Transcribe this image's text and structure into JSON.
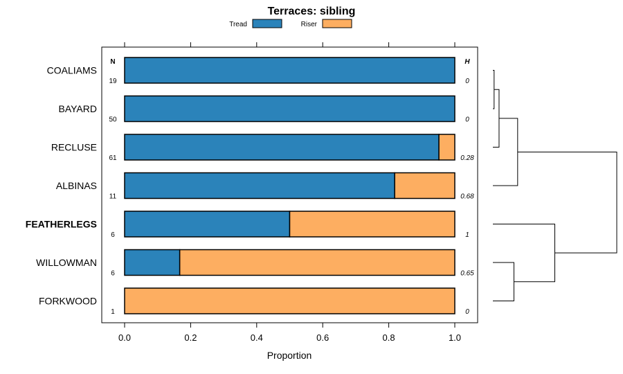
{
  "chart_data": {
    "type": "bar",
    "orientation": "horizontal",
    "stacked": true,
    "title": "Terraces: sibling",
    "xlabel": "Proportion",
    "xlim": [
      -0.07,
      1.07
    ],
    "xticks": [
      "0.0",
      "0.2",
      "0.4",
      "0.6",
      "0.8",
      "1.0"
    ],
    "xtick_values": [
      0,
      0.2,
      0.4,
      0.6,
      0.8,
      1.0
    ],
    "n_header": "N",
    "h_header": "H",
    "colors": {
      "tread": "#2b83ba",
      "riser": "#fdae61"
    },
    "series": [
      {
        "name": "Tread",
        "color": "#2b83ba"
      },
      {
        "name": "Riser",
        "color": "#fdae61"
      }
    ],
    "categories": [
      {
        "label": "COALIAMS",
        "n": "19",
        "tread": 1.0,
        "h": "0",
        "bold": false
      },
      {
        "label": "BAYARD",
        "n": "50",
        "tread": 1.0,
        "h": "0",
        "bold": false
      },
      {
        "label": "RECLUSE",
        "n": "61",
        "tread": 0.952,
        "h": "0.28",
        "bold": false
      },
      {
        "label": "ALBINAS",
        "n": "11",
        "tread": 0.818,
        "h": "0.68",
        "bold": false
      },
      {
        "label": "FEATHERLEGS",
        "n": "6",
        "tread": 0.5,
        "h": "1",
        "bold": true
      },
      {
        "label": "WILLOWMAN",
        "n": "6",
        "tread": 0.167,
        "h": "0.65",
        "bold": false
      },
      {
        "label": "FORKWOOD",
        "n": "1",
        "tread": 0.0,
        "h": "0",
        "bold": false
      }
    ],
    "dendrogram": {
      "merges": [
        {
          "name": "coaliams-bayard",
          "left": "COALIAMS",
          "right": "BAYARD",
          "height": 0.01
        },
        {
          "name": "cb-recluse",
          "left": "coaliams-bayard",
          "right": "RECLUSE",
          "height": 0.05
        },
        {
          "name": "cbr-albinas",
          "left": "cb-recluse",
          "right": "ALBINAS",
          "height": 0.2
        },
        {
          "name": "willowman-forkwood",
          "left": "WILLOWMAN",
          "right": "FORKWOOD",
          "height": 0.17
        },
        {
          "name": "featherlegs-wf",
          "left": "FEATHERLEGS",
          "right": "willowman-forkwood",
          "height": 0.5
        },
        {
          "name": "root",
          "left": "cbr-albinas",
          "right": "featherlegs-wf",
          "height": 1.0
        }
      ]
    }
  }
}
